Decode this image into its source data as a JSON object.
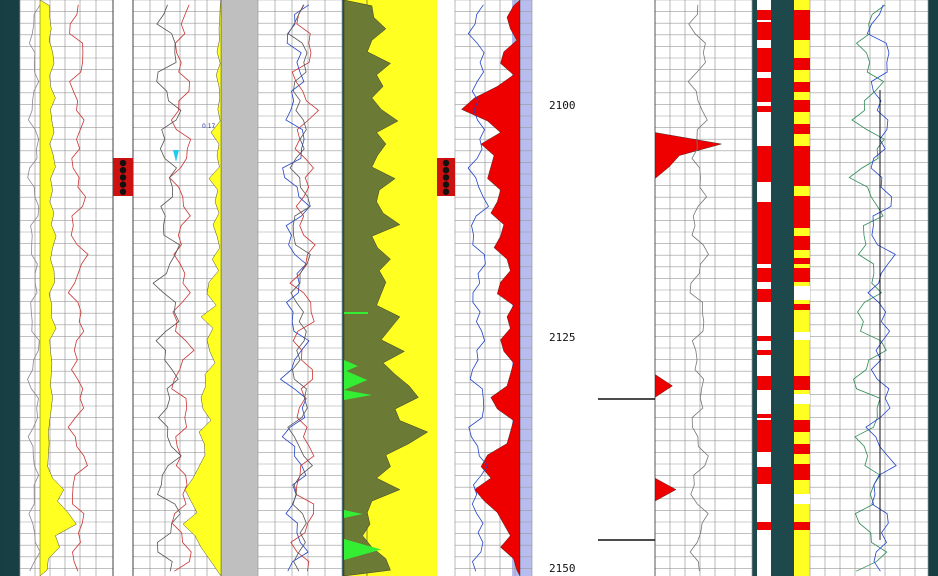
{
  "chart_data": {
    "type": "line",
    "title": "",
    "xlabel": "",
    "ylabel": "",
    "depth_axis": {
      "ticks": [
        "2100",
        "2125",
        "2150"
      ],
      "ylim": [
        2100,
        2150
      ]
    },
    "annotations": [
      "0.17"
    ],
    "tracks": [
      {
        "id": "track-1",
        "fill_color": "#ffff22",
        "baseline": "left",
        "series": [
          {
            "values": [
              0.14,
              0.14,
              0.16,
              0.13,
              0.18,
              0.2,
              0.14,
              0.15,
              0.22,
              0.15,
              0.17,
              0.2,
              0.14,
              0.19,
              0.22,
              0.15,
              0.18,
              0.14,
              0.2,
              0.16,
              0.23,
              0.18,
              0.15,
              0.2,
              0.21,
              0.13,
              0.17,
              0.16,
              0.23,
              0.14,
              0.15,
              0.17,
              0.16,
              0.15,
              0.18,
              0.16,
              0.14,
              0.12,
              0.13,
              0.12,
              0.11,
              0.18,
              0.34,
              0.25,
              0.4,
              0.52,
              0.22,
              0.28,
              0.12,
              0.1
            ]
          }
        ]
      },
      {
        "id": "track-3",
        "fill_color": "#ffff22",
        "baseline": "right",
        "series": [
          {
            "values": [
              0.02,
              0.03,
              0.05,
              0.04,
              0.1,
              0.02,
              0.12,
              0.05,
              0.03,
              0.08,
              0.02,
              0.25,
              0.05,
              0.1,
              0.04,
              0.3,
              0.08,
              0.15,
              0.05,
              0.2,
              0.1,
              0.03,
              0.22,
              0.06,
              0.3,
              0.35,
              0.12,
              0.5,
              0.2,
              0.35,
              0.28,
              0.15,
              0.4,
              0.38,
              0.5,
              0.45,
              0.25,
              0.55,
              0.42,
              0.4,
              0.55,
              0.7,
              0.9,
              0.75,
              0.6,
              0.95,
              0.65,
              0.5,
              0.3,
              0.1
            ]
          }
        ]
      },
      {
        "id": "track-6",
        "fill_color": "#6b7a35",
        "secondary_fill": "#33ee33",
        "background": "#ffff22",
        "series": [
          {
            "values": [
              0.3,
              0.32,
              0.45,
              0.3,
              0.25,
              0.5,
              0.35,
              0.42,
              0.3,
              0.4,
              0.58,
              0.35,
              0.45,
              0.36,
              0.3,
              0.55,
              0.38,
              0.35,
              0.42,
              0.6,
              0.3,
              0.36,
              0.5,
              0.38,
              0.45,
              0.4,
              0.35,
              0.6,
              0.5,
              0.4,
              0.65,
              0.42,
              0.55,
              0.7,
              0.8,
              0.55,
              0.6,
              0.9,
              0.7,
              0.45,
              0.5,
              0.35,
              0.6,
              0.3,
              0.25,
              0.28,
              0.2,
              0.3,
              0.45,
              0.5
            ]
          }
        ]
      },
      {
        "id": "track-8",
        "fill_color": "#ee0000",
        "background": "#b8bdf0",
        "series": [
          {
            "values": [
              0.1,
              0.2,
              0.15,
              0.05,
              0.25,
              0.3,
              0.1,
              0.35,
              0.7,
              0.9,
              0.5,
              0.3,
              0.6,
              0.4,
              0.45,
              0.5,
              0.3,
              0.35,
              0.45,
              0.25,
              0.3,
              0.4,
              0.2,
              0.15,
              0.3,
              0.35,
              0.1,
              0.2,
              0.15,
              0.3,
              0.25,
              0.1,
              0.15,
              0.2,
              0.45,
              0.35,
              0.1,
              0.15,
              0.2,
              0.5,
              0.6,
              0.45,
              0.7,
              0.55,
              0.35,
              0.25,
              0.15,
              0.3,
              0.1,
              0.05
            ]
          }
        ]
      },
      {
        "id": "track-10",
        "fill_color": "#ee0000",
        "series": [
          {
            "values": [
              0,
              0,
              0,
              0,
              0,
              0,
              0,
              0,
              0,
              0,
              0,
              0,
              0.95,
              0.35,
              0.2,
              0,
              0,
              0,
              0,
              0,
              0,
              0,
              0,
              0,
              0,
              0,
              0,
              0,
              0,
              0,
              0,
              0,
              0,
              0.25,
              0,
              0,
              0,
              0,
              0,
              0,
              0,
              0,
              0.3,
              0,
              0,
              0,
              0,
              0,
              0,
              0
            ]
          }
        ]
      }
    ],
    "grid": true,
    "colors": {
      "yellow": "#ffff22",
      "red": "#ee0000",
      "green": "#33ee33",
      "olive": "#6b7a35",
      "lavender": "#b8bdf0",
      "gray": "#bfbfbf",
      "curve_blue": "#2244cc",
      "curve_red": "#cc3333",
      "curve_green": "#2e8b57"
    }
  }
}
